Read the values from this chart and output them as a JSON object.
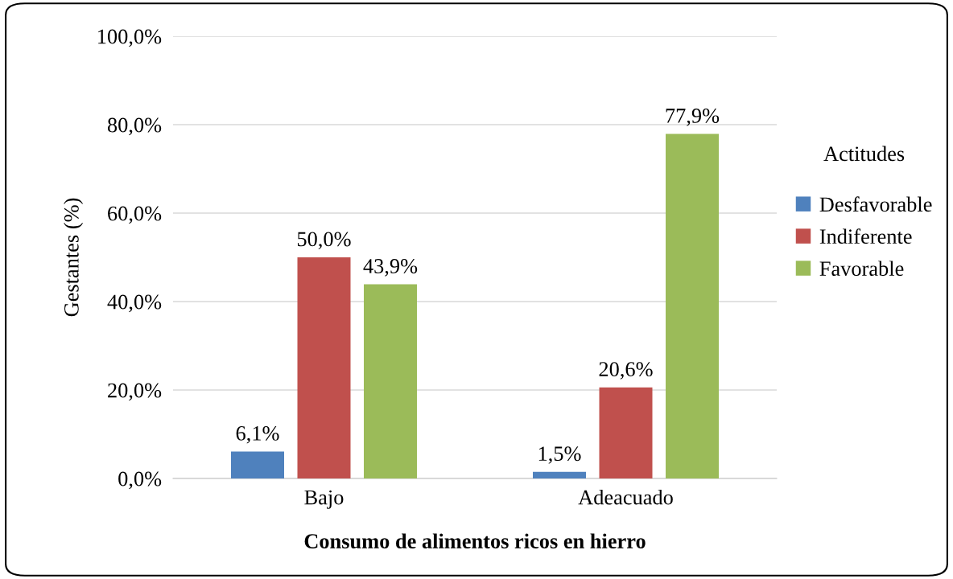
{
  "chart_data": {
    "type": "bar",
    "xlabel": "Consumo de alimentos ricos en hierro",
    "ylabel": "Gestantes (%)",
    "legend_title": "Actitudes",
    "categories": [
      "Bajo",
      "Adeacuado"
    ],
    "series": [
      {
        "name": "Desfavorable",
        "color": "#4f81bd",
        "values": [
          6.1,
          1.5
        ],
        "value_labels": [
          "6,1%",
          "1,5%"
        ]
      },
      {
        "name": "Indiferente",
        "color": "#c0504d",
        "values": [
          50.0,
          20.6
        ],
        "value_labels": [
          "50,0%",
          "20,6%"
        ]
      },
      {
        "name": "Favorable",
        "color": "#9bbb59",
        "values": [
          43.9,
          77.9
        ],
        "value_labels": [
          "43,9%",
          "77,9%"
        ]
      }
    ],
    "ylim": [
      0,
      100
    ],
    "yticks": [
      {
        "value": 0,
        "label": "0,0%"
      },
      {
        "value": 20,
        "label": "20,0%"
      },
      {
        "value": 40,
        "label": "40,0%"
      },
      {
        "value": 60,
        "label": "60,0%"
      },
      {
        "value": 80,
        "label": "80,0%"
      },
      {
        "value": 100,
        "label": "100,0%"
      }
    ],
    "grid": "y",
    "legend": "right"
  }
}
